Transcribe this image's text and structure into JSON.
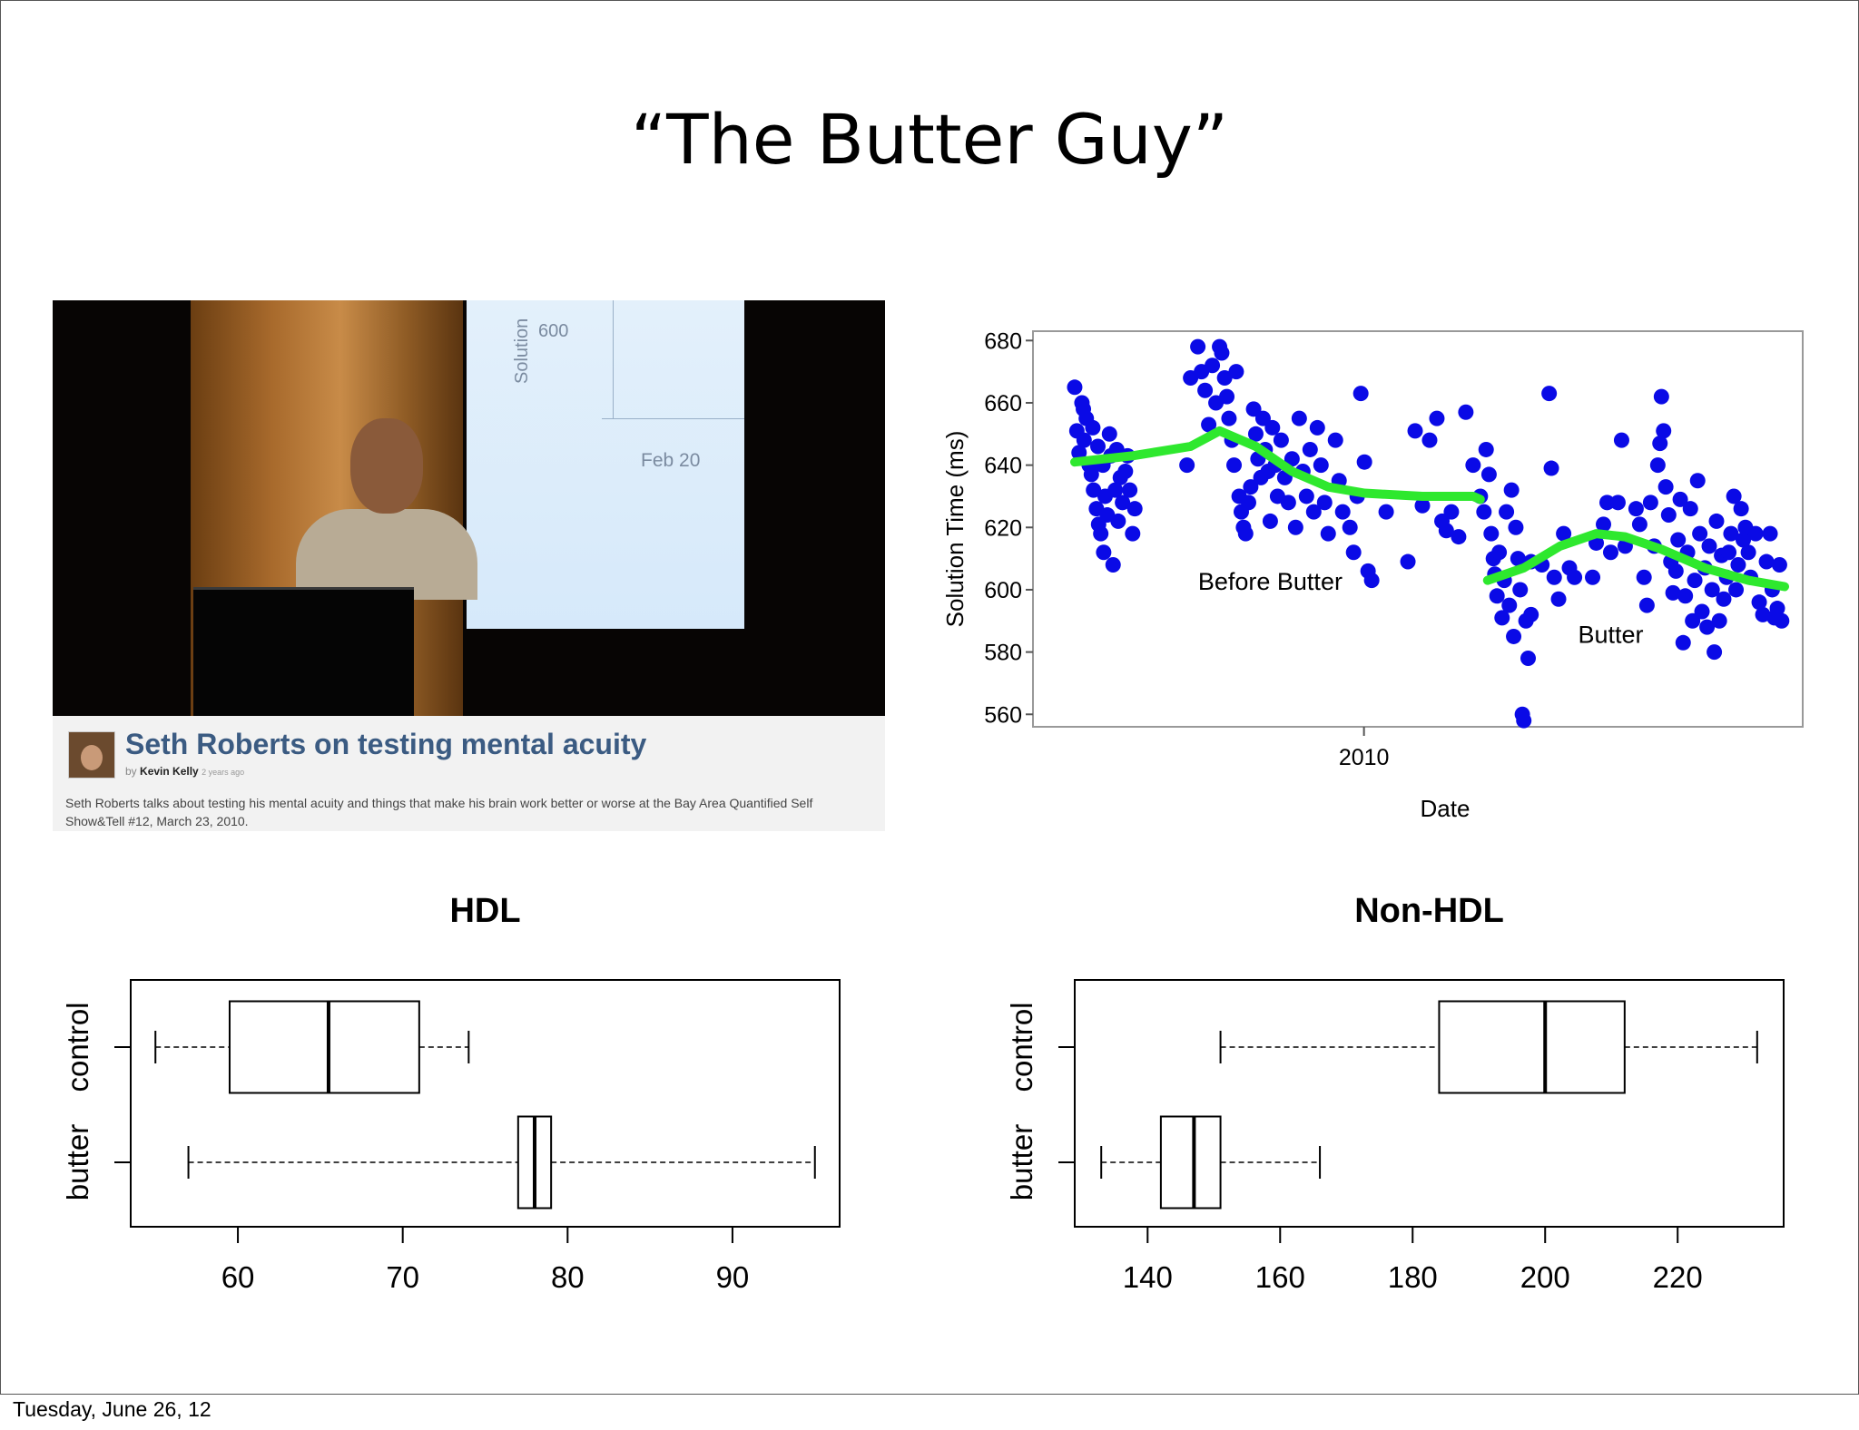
{
  "slide": {
    "title": "“The Butter Guy”",
    "footer": "Tuesday, June 26, 12"
  },
  "video": {
    "screen_tick": "600",
    "screen_axis": "Solution",
    "screen_date": "Feb 20",
    "title": "Seth Roberts on testing mental acuity",
    "by_prefix": "by",
    "author": "Kevin Kelly",
    "posted": "2 years ago",
    "description": "Seth Roberts talks about testing his mental acuity and things that make his brain work better or worse at the Bay Area Quantified Self Show&Tell #12, March 23, 2010."
  },
  "colors": {
    "points": "#0a0ae6",
    "trend": "#2ee82e",
    "caption_title": "#3b5b82",
    "box_line": "#000000"
  },
  "chart_data": [
    {
      "type": "scatter",
      "xlabel": "Date",
      "ylabel": "Solution Time (ms)",
      "x_ticks": [
        "2010"
      ],
      "y_ticks": [
        560,
        580,
        600,
        620,
        640,
        660,
        680
      ],
      "ylim": [
        556,
        683
      ],
      "x_domain": [
        0,
        100
      ],
      "annotations": [
        {
          "text": "Before Butter",
          "x": 29,
          "y": 600
        },
        {
          "text": "Butter",
          "x": 76,
          "y": 583
        }
      ],
      "series": [
        {
          "points": [
            [
              2,
              665
            ],
            [
              2.3,
              651
            ],
            [
              2.6,
              644
            ],
            [
              3,
              660
            ],
            [
              3.3,
              648
            ],
            [
              3.6,
              655
            ],
            [
              4,
              640
            ],
            [
              4.3,
              637
            ],
            [
              4.6,
              632
            ],
            [
              5,
              626
            ],
            [
              5.3,
              621
            ],
            [
              5.6,
              618
            ],
            [
              5.9,
              640
            ],
            [
              6.2,
              630
            ],
            [
              6.5,
              624
            ],
            [
              6.8,
              650
            ],
            [
              7,
              643
            ],
            [
              7.3,
              608
            ],
            [
              7.6,
              632
            ],
            [
              8,
              622
            ],
            [
              8.3,
              636
            ],
            [
              8.6,
              628
            ],
            [
              9,
              638
            ],
            [
              9.3,
              643
            ],
            [
              9.6,
              632
            ],
            [
              10,
              618
            ],
            [
              10.3,
              626
            ],
            [
              3.2,
              658
            ],
            [
              4.5,
              652
            ],
            [
              5.2,
              646
            ],
            [
              6,
              612
            ],
            [
              7.8,
              645
            ],
            [
              17.5,
              640
            ],
            [
              18,
              668
            ],
            [
              19,
              678
            ],
            [
              19.5,
              670
            ],
            [
              20,
              664
            ],
            [
              20.5,
              653
            ],
            [
              21,
              672
            ],
            [
              21.5,
              660
            ],
            [
              22,
              678
            ],
            [
              22.3,
              676
            ],
            [
              22.7,
              668
            ],
            [
              23,
              662
            ],
            [
              23.3,
              655
            ],
            [
              23.7,
              648
            ],
            [
              24,
              640
            ],
            [
              24.3,
              670
            ],
            [
              24.7,
              630
            ],
            [
              25,
              625
            ],
            [
              25.3,
              620
            ],
            [
              25.6,
              618
            ],
            [
              26,
              628
            ],
            [
              26.3,
              633
            ],
            [
              26.7,
              658
            ],
            [
              27,
              650
            ],
            [
              27.3,
              642
            ],
            [
              27.7,
              636
            ],
            [
              28,
              655
            ],
            [
              28.3,
              645
            ],
            [
              28.7,
              638
            ],
            [
              29,
              622
            ],
            [
              29.3,
              652
            ],
            [
              29.7,
              640
            ],
            [
              30,
              630
            ],
            [
              30.5,
              648
            ],
            [
              31,
              636
            ],
            [
              31.5,
              628
            ],
            [
              32,
              642
            ],
            [
              32.5,
              620
            ],
            [
              33,
              655
            ],
            [
              33.5,
              638
            ],
            [
              34,
              630
            ],
            [
              34.5,
              645
            ],
            [
              35,
              625
            ],
            [
              35.5,
              652
            ],
            [
              36,
              640
            ],
            [
              36.5,
              628
            ],
            [
              37,
              618
            ],
            [
              38,
              648
            ],
            [
              38.5,
              635
            ],
            [
              39,
              625
            ],
            [
              40,
              620
            ],
            [
              40.5,
              612
            ],
            [
              41,
              630
            ],
            [
              41.5,
              663
            ],
            [
              42,
              641
            ],
            [
              42.5,
              606
            ],
            [
              43,
              603
            ],
            [
              45,
              625
            ],
            [
              48,
              609
            ],
            [
              49,
              651
            ],
            [
              50,
              627
            ],
            [
              51,
              648
            ],
            [
              52,
              655
            ],
            [
              52.7,
              622
            ],
            [
              53.3,
              619
            ],
            [
              54,
              625
            ],
            [
              55,
              617
            ],
            [
              56,
              657
            ],
            [
              57,
              640
            ],
            [
              58,
              630
            ],
            [
              58.5,
              625
            ],
            [
              58.8,
              645
            ],
            [
              59.2,
              637
            ],
            [
              59.5,
              618
            ],
            [
              59.8,
              610
            ],
            [
              60,
              605
            ],
            [
              60.3,
              598
            ],
            [
              60.6,
              612
            ],
            [
              61,
              591
            ],
            [
              61.3,
              603
            ],
            [
              61.6,
              625
            ],
            [
              62,
              595
            ],
            [
              62.3,
              632
            ],
            [
              62.6,
              585
            ],
            [
              62.9,
              620
            ],
            [
              63.2,
              610
            ],
            [
              63.5,
              600
            ],
            [
              63.8,
              560
            ],
            [
              64,
              558
            ],
            [
              64.3,
              590
            ],
            [
              64.6,
              578
            ],
            [
              65,
              609
            ],
            [
              65,
              592
            ],
            [
              66.5,
              608
            ],
            [
              67.5,
              663
            ],
            [
              67.8,
              639
            ],
            [
              68.2,
              604
            ],
            [
              68.8,
              597
            ],
            [
              69.5,
              618
            ],
            [
              70.3,
              607
            ],
            [
              71,
              604
            ],
            [
              73.5,
              604
            ],
            [
              74,
              615
            ],
            [
              75,
              621
            ],
            [
              75.5,
              628
            ],
            [
              76,
              612
            ],
            [
              77,
              628
            ],
            [
              77.5,
              648
            ],
            [
              78,
              614
            ],
            [
              79.5,
              626
            ],
            [
              80,
              621
            ],
            [
              80.6,
              604
            ],
            [
              81,
              595
            ],
            [
              81.5,
              628
            ],
            [
              82,
              614
            ],
            [
              82.5,
              640
            ],
            [
              82.8,
              647
            ],
            [
              83,
              662
            ],
            [
              83.3,
              651
            ],
            [
              83.6,
              633
            ],
            [
              84,
              624
            ],
            [
              84.3,
              609
            ],
            [
              84.6,
              599
            ],
            [
              85,
              606
            ],
            [
              85.3,
              616
            ],
            [
              85.6,
              629
            ],
            [
              86,
              583
            ],
            [
              86.3,
              598
            ],
            [
              86.6,
              612
            ],
            [
              87,
              626
            ],
            [
              87.3,
              590
            ],
            [
              87.6,
              603
            ],
            [
              88,
              635
            ],
            [
              88.3,
              618
            ],
            [
              88.6,
              593
            ],
            [
              89,
              607
            ],
            [
              89.3,
              588
            ],
            [
              89.6,
              614
            ],
            [
              90,
              600
            ],
            [
              90.3,
              580
            ],
            [
              90.6,
              622
            ],
            [
              91,
              590
            ],
            [
              91.3,
              611
            ],
            [
              91.6,
              597
            ],
            [
              92,
              604
            ],
            [
              92.3,
              612
            ],
            [
              92.6,
              618
            ],
            [
              93,
              630
            ],
            [
              93.3,
              600
            ],
            [
              93.6,
              608
            ],
            [
              94,
              626
            ],
            [
              94.3,
              616
            ],
            [
              94.6,
              620
            ],
            [
              95,
              612
            ],
            [
              95.3,
              604
            ],
            [
              96,
              618
            ],
            [
              96.5,
              596
            ],
            [
              97,
              592
            ],
            [
              97.5,
              609
            ],
            [
              98,
              618
            ],
            [
              98.3,
              600
            ],
            [
              98.6,
              591
            ],
            [
              99,
              594
            ],
            [
              99.3,
              608
            ],
            [
              99.6,
              590
            ]
          ]
        }
      ],
      "trend": [
        [
          2,
          641
        ],
        [
          10,
          643
        ],
        [
          18,
          646
        ],
        [
          22,
          651
        ],
        [
          27,
          646
        ],
        [
          32,
          638
        ],
        [
          37,
          633
        ],
        [
          42,
          631
        ],
        [
          50,
          630
        ],
        [
          57,
          630
        ],
        [
          58,
          629
        ],
        [
          59,
          603
        ],
        [
          64,
          607
        ],
        [
          69,
          614
        ],
        [
          74,
          618
        ],
        [
          78,
          617
        ],
        [
          83,
          613
        ],
        [
          89,
          607
        ],
        [
          95,
          603
        ],
        [
          100,
          601
        ]
      ]
    },
    {
      "type": "boxplot",
      "title": "HDL",
      "x_ticks": [
        60,
        70,
        80,
        90
      ],
      "xlim": [
        53.5,
        96.5
      ],
      "series": [
        {
          "name": "control",
          "min": 55,
          "q1": 59.5,
          "median": 65.5,
          "q3": 71,
          "max": 74
        },
        {
          "name": "butter",
          "min": 57,
          "q1": 77,
          "median": 78,
          "q3": 79,
          "max": 95
        }
      ]
    },
    {
      "type": "boxplot",
      "title": "Non-HDL",
      "x_ticks": [
        140,
        160,
        180,
        200,
        220
      ],
      "xlim": [
        129,
        236
      ],
      "series": [
        {
          "name": "control",
          "min": 151,
          "q1": 184,
          "median": 200,
          "q3": 212,
          "max": 232
        },
        {
          "name": "butter",
          "min": 133,
          "q1": 142,
          "median": 147,
          "q3": 151,
          "max": 166
        }
      ]
    }
  ]
}
